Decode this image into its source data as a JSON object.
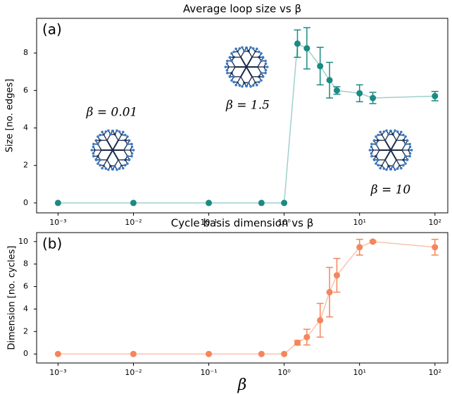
{
  "chart_data": [
    {
      "type": "line",
      "title": "Average loop size vs β",
      "panel_label": "(a)",
      "ylabel": "Size [no. edges]",
      "xscale": "log",
      "x": [
        0.001,
        0.01,
        0.1,
        0.5,
        1,
        1.5,
        2,
        3,
        4,
        5,
        10,
        15,
        100
      ],
      "series": [
        {
          "color": "#1b8a82",
          "line_color": "#9fd0cc",
          "values": [
            0,
            0,
            0,
            0,
            0,
            8.5,
            8.25,
            7.3,
            6.55,
            6.0,
            5.85,
            5.6,
            5.7
          ],
          "errors": [
            null,
            null,
            null,
            null,
            null,
            0.73,
            1.1,
            1.0,
            0.95,
            0.2,
            0.45,
            0.3,
            0.25
          ]
        }
      ],
      "xlim": [
        0.00052,
        148
      ],
      "xticks": [
        {
          "value": 0.001,
          "label": "10⁻³"
        },
        {
          "value": 0.01,
          "label": "10⁻²"
        },
        {
          "value": 0.1,
          "label": "10⁻¹"
        },
        {
          "value": 1,
          "label": "10⁰"
        },
        {
          "value": 10,
          "label": "10¹"
        },
        {
          "value": 100,
          "label": "10²"
        }
      ],
      "ylim": [
        -0.53,
        9.85
      ],
      "yticks": [
        0,
        2,
        4,
        6,
        8
      ],
      "annotations": [
        "β = 0.01",
        "β = 1.5",
        "β = 10"
      ]
    },
    {
      "type": "line",
      "title": "Cycle basis dimension vs β",
      "panel_label": "(b)",
      "ylabel": "Dimension [no. cycles]",
      "xlabel": "β",
      "xscale": "log",
      "x": [
        0.001,
        0.01,
        0.1,
        0.5,
        1,
        1.5,
        2,
        3,
        4,
        5,
        10,
        15,
        100
      ],
      "series": [
        {
          "color": "#f5855a",
          "line_color": "#f9c3ac",
          "values": [
            0,
            0,
            0,
            0,
            0,
            1.0,
            1.5,
            3.0,
            5.5,
            7.0,
            9.5,
            10,
            9.5
          ],
          "errors": [
            null,
            null,
            null,
            null,
            null,
            0.2,
            0.7,
            1.5,
            2.2,
            1.5,
            0.7,
            0.1,
            0.7
          ]
        }
      ],
      "xlim": [
        0.00052,
        148
      ],
      "xticks": [
        {
          "value": 0.001,
          "label": "10⁻³"
        },
        {
          "value": 0.01,
          "label": "10⁻²"
        },
        {
          "value": 0.1,
          "label": "10⁻¹"
        },
        {
          "value": 1,
          "label": "10⁰"
        },
        {
          "value": 10,
          "label": "10¹"
        },
        {
          "value": 100,
          "label": "10²"
        }
      ],
      "ylim": [
        -0.8,
        10.8
      ],
      "yticks": [
        0,
        2,
        4,
        6,
        8,
        10
      ]
    }
  ]
}
